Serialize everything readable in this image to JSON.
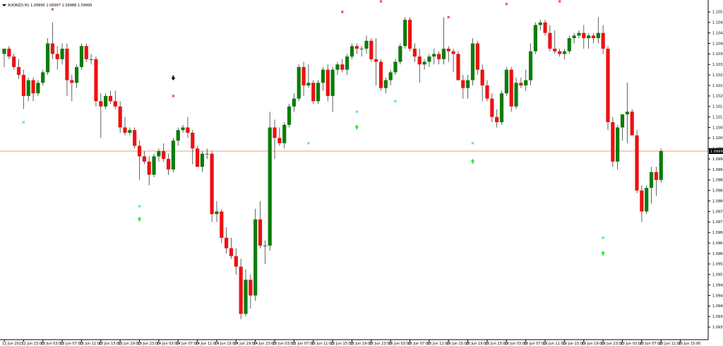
{
  "window": {
    "symbol_menu_icon": "triangle-down-icon",
    "title": "AUDNZD,H1  1.09990 1.09997 1.09988 1.09995"
  },
  "colors": {
    "background": "#ffffff",
    "bull": "#0a7d0a",
    "bear": "#ee1111",
    "wick": "#3a3a3a",
    "axis": "#000000",
    "current_price_line": "#e8a07a",
    "price_tag_bg": "#000000",
    "marker_cyan": "#33d1e6",
    "marker_red": "#ee2222",
    "marker_green": "#22ee22",
    "marker_black": "#000000"
  },
  "chart_data": {
    "type": "candlestick",
    "symbol": "AUDNZD",
    "timeframe": "H1",
    "ylim": [
      1.09285,
      1.10565
    ],
    "y_ticks": [
      "1.10525",
      "1.10485",
      "1.10445",
      "1.10405",
      "1.10365",
      "1.10325",
      "1.10285",
      "1.10245",
      "1.10205",
      "1.10165",
      "1.10125",
      "1.10085",
      "1.10045",
      "1.10005",
      "1.09965",
      "1.09925",
      "1.09885",
      "1.09845",
      "1.09805",
      "1.09765",
      "1.09725",
      "1.09685",
      "1.09645",
      "1.09605",
      "1.09565",
      "1.09525",
      "1.09485",
      "1.09445",
      "1.09405",
      "1.09365",
      "1.09325"
    ],
    "x_ticks": [
      {
        "i": 0,
        "label": "12 Jun 2023"
      },
      {
        "i": 4,
        "label": "12 Jun 23:00"
      },
      {
        "i": 8,
        "label": "13 Jun 03:00"
      },
      {
        "i": 12,
        "label": "13 Jun 07:00"
      },
      {
        "i": 16,
        "label": "13 Jun 11:00"
      },
      {
        "i": 20,
        "label": "13 Jun 15:00"
      },
      {
        "i": 24,
        "label": "13 Jun 19:00"
      },
      {
        "i": 28,
        "label": "13 Jun 23:00"
      },
      {
        "i": 32,
        "label": "14 Jun 03:00"
      },
      {
        "i": 36,
        "label": "14 Jun 07:00"
      },
      {
        "i": 40,
        "label": "14 Jun 11:00"
      },
      {
        "i": 44,
        "label": "14 Jun 15:00"
      },
      {
        "i": 48,
        "label": "14 Jun 19:00"
      },
      {
        "i": 52,
        "label": "14 Jun 23:00"
      },
      {
        "i": 56,
        "label": "15 Jun 03:00"
      },
      {
        "i": 60,
        "label": "15 Jun 07:00"
      },
      {
        "i": 64,
        "label": "15 Jun 11:00"
      },
      {
        "i": 68,
        "label": "15 Jun 15:00"
      },
      {
        "i": 72,
        "label": "15 Jun 19:00"
      },
      {
        "i": 76,
        "label": "15 Jun 23:00"
      },
      {
        "i": 80,
        "label": "16 Jun 03:00"
      },
      {
        "i": 84,
        "label": "16 Jun 07:00"
      },
      {
        "i": 88,
        "label": "16 Jun 11:00"
      },
      {
        "i": 92,
        "label": "16 Jun 15:00"
      },
      {
        "i": 96,
        "label": "16 Jun 19:00"
      },
      {
        "i": 100,
        "label": "16 Jun 23:00"
      },
      {
        "i": 104,
        "label": "19 Jun 03:00"
      },
      {
        "i": 108,
        "label": "19 Jun 07:00"
      },
      {
        "i": 112,
        "label": "19 Jun 11:00"
      },
      {
        "i": 116,
        "label": "19 Jun 15:00"
      },
      {
        "i": 120,
        "label": "19 Jun 19:00"
      },
      {
        "i": 124,
        "label": "19 Jun 23:00"
      },
      {
        "i": 128,
        "label": "20 Jun 03:00"
      },
      {
        "i": 132,
        "label": "20 Jun 07:00"
      },
      {
        "i": 136,
        "label": "20 Jun 11:00"
      },
      {
        "i": 140,
        "label": "20 Jun 15:00"
      }
    ],
    "current_price": 1.09995,
    "current_price_label": "1.09995",
    "candles": [
      {
        "o": 1.10365,
        "h": 1.10385,
        "l": 1.10315,
        "c": 1.10385
      },
      {
        "o": 1.10385,
        "h": 1.10395,
        "l": 1.10345,
        "c": 1.10355
      },
      {
        "o": 1.10355,
        "h": 1.10365,
        "l": 1.10305,
        "c": 1.10315
      },
      {
        "o": 1.10315,
        "h": 1.10345,
        "l": 1.1027,
        "c": 1.10285
      },
      {
        "o": 1.10285,
        "h": 1.10305,
        "l": 1.10155,
        "c": 1.10205
      },
      {
        "o": 1.10205,
        "h": 1.10275,
        "l": 1.10185,
        "c": 1.10265
      },
      {
        "o": 1.10265,
        "h": 1.10275,
        "l": 1.10185,
        "c": 1.10215
      },
      {
        "o": 1.10215,
        "h": 1.10265,
        "l": 1.10205,
        "c": 1.10255
      },
      {
        "o": 1.10255,
        "h": 1.10305,
        "l": 1.10245,
        "c": 1.10295
      },
      {
        "o": 1.10295,
        "h": 1.10425,
        "l": 1.10285,
        "c": 1.10405
      },
      {
        "o": 1.10405,
        "h": 1.10485,
        "l": 1.10345,
        "c": 1.10365
      },
      {
        "o": 1.10365,
        "h": 1.10395,
        "l": 1.10305,
        "c": 1.10345
      },
      {
        "o": 1.10345,
        "h": 1.10405,
        "l": 1.10325,
        "c": 1.10385
      },
      {
        "o": 1.10385,
        "h": 1.10405,
        "l": 1.10205,
        "c": 1.10265
      },
      {
        "o": 1.10265,
        "h": 1.10285,
        "l": 1.10185,
        "c": 1.10255
      },
      {
        "o": 1.10255,
        "h": 1.10325,
        "l": 1.10235,
        "c": 1.10315
      },
      {
        "o": 1.10315,
        "h": 1.10405,
        "l": 1.10305,
        "c": 1.10395
      },
      {
        "o": 1.10395,
        "h": 1.10405,
        "l": 1.10335,
        "c": 1.10345
      },
      {
        "o": 1.10345,
        "h": 1.10365,
        "l": 1.10325,
        "c": 1.10345
      },
      {
        "o": 1.10345,
        "h": 1.10355,
        "l": 1.10165,
        "c": 1.10185
      },
      {
        "o": 1.10185,
        "h": 1.10215,
        "l": 1.10045,
        "c": 1.10165
      },
      {
        "o": 1.10165,
        "h": 1.10215,
        "l": 1.10155,
        "c": 1.10205
      },
      {
        "o": 1.10205,
        "h": 1.10225,
        "l": 1.10175,
        "c": 1.10185
      },
      {
        "o": 1.10185,
        "h": 1.10225,
        "l": 1.10155,
        "c": 1.10165
      },
      {
        "o": 1.10165,
        "h": 1.10185,
        "l": 1.10065,
        "c": 1.10085
      },
      {
        "o": 1.10085,
        "h": 1.10125,
        "l": 1.10055,
        "c": 1.10065
      },
      {
        "o": 1.10065,
        "h": 1.10085,
        "l": 1.10055,
        "c": 1.10075
      },
      {
        "o": 1.10075,
        "h": 1.10085,
        "l": 1.10005,
        "c": 1.10015
      },
      {
        "o": 1.10015,
        "h": 1.10035,
        "l": 1.09885,
        "c": 1.09975
      },
      {
        "o": 1.09975,
        "h": 1.09995,
        "l": 1.09945,
        "c": 1.09955
      },
      {
        "o": 1.09955,
        "h": 1.09975,
        "l": 1.09865,
        "c": 1.09905
      },
      {
        "o": 1.09905,
        "h": 1.09985,
        "l": 1.09895,
        "c": 1.09975
      },
      {
        "o": 1.09975,
        "h": 1.10005,
        "l": 1.09955,
        "c": 1.09995
      },
      {
        "o": 1.09995,
        "h": 1.10025,
        "l": 1.09955,
        "c": 1.09965
      },
      {
        "o": 1.09965,
        "h": 1.09985,
        "l": 1.09905,
        "c": 1.09925
      },
      {
        "o": 1.09925,
        "h": 1.10045,
        "l": 1.09915,
        "c": 1.10035
      },
      {
        "o": 1.10035,
        "h": 1.10085,
        "l": 1.10015,
        "c": 1.10075
      },
      {
        "o": 1.10075,
        "h": 1.10095,
        "l": 1.10065,
        "c": 1.10085
      },
      {
        "o": 1.10085,
        "h": 1.10125,
        "l": 1.10045,
        "c": 1.10065
      },
      {
        "o": 1.10065,
        "h": 1.10075,
        "l": 1.09945,
        "c": 1.10005
      },
      {
        "o": 1.10005,
        "h": 1.10015,
        "l": 1.09935,
        "c": 1.09935
      },
      {
        "o": 1.09935,
        "h": 1.09995,
        "l": 1.09915,
        "c": 1.09985
      },
      {
        "o": 1.09985,
        "h": 1.10005,
        "l": 1.09965,
        "c": 1.09985
      },
      {
        "o": 1.09985,
        "h": 1.09995,
        "l": 1.09725,
        "c": 1.09755
      },
      {
        "o": 1.09755,
        "h": 1.09805,
        "l": 1.09725,
        "c": 1.09765
      },
      {
        "o": 1.09765,
        "h": 1.09775,
        "l": 1.09645,
        "c": 1.09665
      },
      {
        "o": 1.09665,
        "h": 1.09705,
        "l": 1.09605,
        "c": 1.09625
      },
      {
        "o": 1.09625,
        "h": 1.09665,
        "l": 1.09585,
        "c": 1.09595
      },
      {
        "o": 1.09595,
        "h": 1.09625,
        "l": 1.09525,
        "c": 1.09555
      },
      {
        "o": 1.09555,
        "h": 1.09585,
        "l": 1.09355,
        "c": 1.09375
      },
      {
        "o": 1.09375,
        "h": 1.09545,
        "l": 1.09365,
        "c": 1.09505
      },
      {
        "o": 1.09505,
        "h": 1.09525,
        "l": 1.09395,
        "c": 1.09445
      },
      {
        "o": 1.09445,
        "h": 1.09775,
        "l": 1.09425,
        "c": 1.09735
      },
      {
        "o": 1.09735,
        "h": 1.09805,
        "l": 1.09625,
        "c": 1.09635
      },
      {
        "o": 1.09635,
        "h": 1.09655,
        "l": 1.09565,
        "c": 1.09635
      },
      {
        "o": 1.09635,
        "h": 1.10145,
        "l": 1.09615,
        "c": 1.10085
      },
      {
        "o": 1.10085,
        "h": 1.10115,
        "l": 1.09965,
        "c": 1.10045
      },
      {
        "o": 1.10045,
        "h": 1.10085,
        "l": 1.10015,
        "c": 1.10025
      },
      {
        "o": 1.10025,
        "h": 1.10105,
        "l": 1.10005,
        "c": 1.10095
      },
      {
        "o": 1.10095,
        "h": 1.10175,
        "l": 1.10085,
        "c": 1.10165
      },
      {
        "o": 1.10165,
        "h": 1.10215,
        "l": 1.10145,
        "c": 1.10195
      },
      {
        "o": 1.10195,
        "h": 1.10325,
        "l": 1.10185,
        "c": 1.10315
      },
      {
        "o": 1.10315,
        "h": 1.10335,
        "l": 1.10205,
        "c": 1.10245
      },
      {
        "o": 1.10245,
        "h": 1.10325,
        "l": 1.10235,
        "c": 1.10255
      },
      {
        "o": 1.10255,
        "h": 1.10265,
        "l": 1.10175,
        "c": 1.10185
      },
      {
        "o": 1.10185,
        "h": 1.10265,
        "l": 1.10175,
        "c": 1.10255
      },
      {
        "o": 1.10255,
        "h": 1.10315,
        "l": 1.10225,
        "c": 1.10305
      },
      {
        "o": 1.10305,
        "h": 1.10325,
        "l": 1.10185,
        "c": 1.10205
      },
      {
        "o": 1.10205,
        "h": 1.10315,
        "l": 1.10145,
        "c": 1.10305
      },
      {
        "o": 1.10305,
        "h": 1.10335,
        "l": 1.10285,
        "c": 1.10325
      },
      {
        "o": 1.10325,
        "h": 1.10345,
        "l": 1.10295,
        "c": 1.10305
      },
      {
        "o": 1.10305,
        "h": 1.10365,
        "l": 1.10285,
        "c": 1.10355
      },
      {
        "o": 1.10355,
        "h": 1.10405,
        "l": 1.10345,
        "c": 1.10395
      },
      {
        "o": 1.10395,
        "h": 1.10405,
        "l": 1.10365,
        "c": 1.10385
      },
      {
        "o": 1.10385,
        "h": 1.10395,
        "l": 1.10355,
        "c": 1.10385
      },
      {
        "o": 1.10385,
        "h": 1.10435,
        "l": 1.10365,
        "c": 1.10415
      },
      {
        "o": 1.10415,
        "h": 1.10425,
        "l": 1.10335,
        "c": 1.10345
      },
      {
        "o": 1.10345,
        "h": 1.10425,
        "l": 1.10245,
        "c": 1.10335
      },
      {
        "o": 1.10335,
        "h": 1.10345,
        "l": 1.10225,
        "c": 1.10235
      },
      {
        "o": 1.10235,
        "h": 1.10275,
        "l": 1.10215,
        "c": 1.10265
      },
      {
        "o": 1.10265,
        "h": 1.10305,
        "l": 1.10245,
        "c": 1.10295
      },
      {
        "o": 1.10295,
        "h": 1.10345,
        "l": 1.10285,
        "c": 1.10335
      },
      {
        "o": 1.10335,
        "h": 1.10405,
        "l": 1.10325,
        "c": 1.10395
      },
      {
        "o": 1.10395,
        "h": 1.10505,
        "l": 1.10385,
        "c": 1.10495
      },
      {
        "o": 1.10495,
        "h": 1.10505,
        "l": 1.10375,
        "c": 1.10385
      },
      {
        "o": 1.10385,
        "h": 1.10405,
        "l": 1.10335,
        "c": 1.10355
      },
      {
        "o": 1.10355,
        "h": 1.10385,
        "l": 1.10255,
        "c": 1.10325
      },
      {
        "o": 1.10325,
        "h": 1.10345,
        "l": 1.10305,
        "c": 1.10335
      },
      {
        "o": 1.10335,
        "h": 1.10365,
        "l": 1.10315,
        "c": 1.10355
      },
      {
        "o": 1.10355,
        "h": 1.10385,
        "l": 1.10325,
        "c": 1.10365
      },
      {
        "o": 1.10365,
        "h": 1.10375,
        "l": 1.10325,
        "c": 1.10345
      },
      {
        "o": 1.10345,
        "h": 1.10505,
        "l": 1.10325,
        "c": 1.10385
      },
      {
        "o": 1.10385,
        "h": 1.10395,
        "l": 1.10335,
        "c": 1.10375
      },
      {
        "o": 1.10375,
        "h": 1.10385,
        "l": 1.10295,
        "c": 1.10365
      },
      {
        "o": 1.10365,
        "h": 1.10375,
        "l": 1.10265,
        "c": 1.10265
      },
      {
        "o": 1.10265,
        "h": 1.10285,
        "l": 1.10195,
        "c": 1.10235
      },
      {
        "o": 1.10235,
        "h": 1.10285,
        "l": 1.10195,
        "c": 1.10265
      },
      {
        "o": 1.10265,
        "h": 1.10425,
        "l": 1.10245,
        "c": 1.10405
      },
      {
        "o": 1.10405,
        "h": 1.10415,
        "l": 1.10285,
        "c": 1.10305
      },
      {
        "o": 1.10305,
        "h": 1.10325,
        "l": 1.10185,
        "c": 1.10245
      },
      {
        "o": 1.10245,
        "h": 1.10265,
        "l": 1.10185,
        "c": 1.10195
      },
      {
        "o": 1.10195,
        "h": 1.10215,
        "l": 1.10105,
        "c": 1.10125
      },
      {
        "o": 1.10125,
        "h": 1.10155,
        "l": 1.10085,
        "c": 1.10105
      },
      {
        "o": 1.10105,
        "h": 1.10225,
        "l": 1.10095,
        "c": 1.10215
      },
      {
        "o": 1.10215,
        "h": 1.10315,
        "l": 1.10205,
        "c": 1.10305
      },
      {
        "o": 1.10305,
        "h": 1.10315,
        "l": 1.10145,
        "c": 1.10165
      },
      {
        "o": 1.10165,
        "h": 1.10275,
        "l": 1.10155,
        "c": 1.10255
      },
      {
        "o": 1.10255,
        "h": 1.10275,
        "l": 1.10235,
        "c": 1.10245
      },
      {
        "o": 1.10245,
        "h": 1.10305,
        "l": 1.10225,
        "c": 1.10265
      },
      {
        "o": 1.10265,
        "h": 1.10405,
        "l": 1.10245,
        "c": 1.10375
      },
      {
        "o": 1.10375,
        "h": 1.10485,
        "l": 1.10365,
        "c": 1.10475
      },
      {
        "o": 1.10475,
        "h": 1.10495,
        "l": 1.10455,
        "c": 1.10485
      },
      {
        "o": 1.10485,
        "h": 1.10495,
        "l": 1.10435,
        "c": 1.10445
      },
      {
        "o": 1.10445,
        "h": 1.10475,
        "l": 1.10375,
        "c": 1.10385
      },
      {
        "o": 1.10385,
        "h": 1.10455,
        "l": 1.10365,
        "c": 1.10375
      },
      {
        "o": 1.10375,
        "h": 1.10385,
        "l": 1.10355,
        "c": 1.10365
      },
      {
        "o": 1.10365,
        "h": 1.10385,
        "l": 1.10345,
        "c": 1.10375
      },
      {
        "o": 1.10375,
        "h": 1.10435,
        "l": 1.10365,
        "c": 1.10425
      },
      {
        "o": 1.10425,
        "h": 1.10445,
        "l": 1.10405,
        "c": 1.10435
      },
      {
        "o": 1.10435,
        "h": 1.10455,
        "l": 1.10425,
        "c": 1.10445
      },
      {
        "o": 1.10445,
        "h": 1.10475,
        "l": 1.10385,
        "c": 1.10425
      },
      {
        "o": 1.10425,
        "h": 1.10445,
        "l": 1.10385,
        "c": 1.10435
      },
      {
        "o": 1.10435,
        "h": 1.10445,
        "l": 1.10405,
        "c": 1.10425
      },
      {
        "o": 1.10425,
        "h": 1.10505,
        "l": 1.10405,
        "c": 1.10445
      },
      {
        "o": 1.10445,
        "h": 1.10475,
        "l": 1.10365,
        "c": 1.10385
      },
      {
        "o": 1.10385,
        "h": 1.10395,
        "l": 1.10075,
        "c": 1.10105
      },
      {
        "o": 1.10105,
        "h": 1.10125,
        "l": 1.09935,
        "c": 1.09955
      },
      {
        "o": 1.09955,
        "h": 1.10095,
        "l": 1.09925,
        "c": 1.10085
      },
      {
        "o": 1.10085,
        "h": 1.10125,
        "l": 1.10035,
        "c": 1.10135
      },
      {
        "o": 1.10135,
        "h": 1.10255,
        "l": 1.10025,
        "c": 1.10145
      },
      {
        "o": 1.10145,
        "h": 1.10155,
        "l": 1.10055,
        "c": 1.10055
      },
      {
        "o": 1.10055,
        "h": 1.10075,
        "l": 1.09835,
        "c": 1.09845
      },
      {
        "o": 1.09845,
        "h": 1.09865,
        "l": 1.09725,
        "c": 1.09765
      },
      {
        "o": 1.09765,
        "h": 1.09865,
        "l": 1.09755,
        "c": 1.09855
      },
      {
        "o": 1.09855,
        "h": 1.09935,
        "l": 1.09795,
        "c": 1.09915
      },
      {
        "o": 1.09915,
        "h": 1.09935,
        "l": 1.09825,
        "c": 1.09885
      },
      {
        "o": 1.09885,
        "h": 1.10005,
        "l": 1.09875,
        "c": 1.09995
      }
    ],
    "markers": [
      {
        "i": 10,
        "p": 1.10535,
        "kind": "cross-red"
      },
      {
        "i": 4,
        "p": 1.10105,
        "kind": "cross-cyan"
      },
      {
        "i": 35,
        "p": 1.10205,
        "kind": "cross-red"
      },
      {
        "i": 35,
        "p": 1.10275,
        "kind": "arrow-down-black"
      },
      {
        "i": 28,
        "p": 1.09785,
        "kind": "cross-cyan"
      },
      {
        "i": 28,
        "p": 1.09735,
        "kind": "arrow-up-green"
      },
      {
        "i": 63,
        "p": 1.10025,
        "kind": "cross-cyan"
      },
      {
        "i": 70,
        "p": 1.10525,
        "kind": "cross-red"
      },
      {
        "i": 73,
        "p": 1.10145,
        "kind": "cross-cyan"
      },
      {
        "i": 73,
        "p": 1.10085,
        "kind": "arrow-up-green"
      },
      {
        "i": 78,
        "p": 1.10565,
        "kind": "cross-red"
      },
      {
        "i": 81,
        "p": 1.10185,
        "kind": "cross-cyan"
      },
      {
        "i": 92,
        "p": 1.10505,
        "kind": "cross-red"
      },
      {
        "i": 97,
        "p": 1.10025,
        "kind": "cross-cyan"
      },
      {
        "i": 97,
        "p": 1.09955,
        "kind": "arrow-up-green"
      },
      {
        "i": 104,
        "p": 1.10555,
        "kind": "cross-red"
      },
      {
        "i": 115,
        "p": 1.10565,
        "kind": "cross-red"
      },
      {
        "i": 124,
        "p": 1.09665,
        "kind": "cross-cyan"
      },
      {
        "i": 124,
        "p": 1.09605,
        "kind": "arrow-up-green"
      }
    ]
  }
}
